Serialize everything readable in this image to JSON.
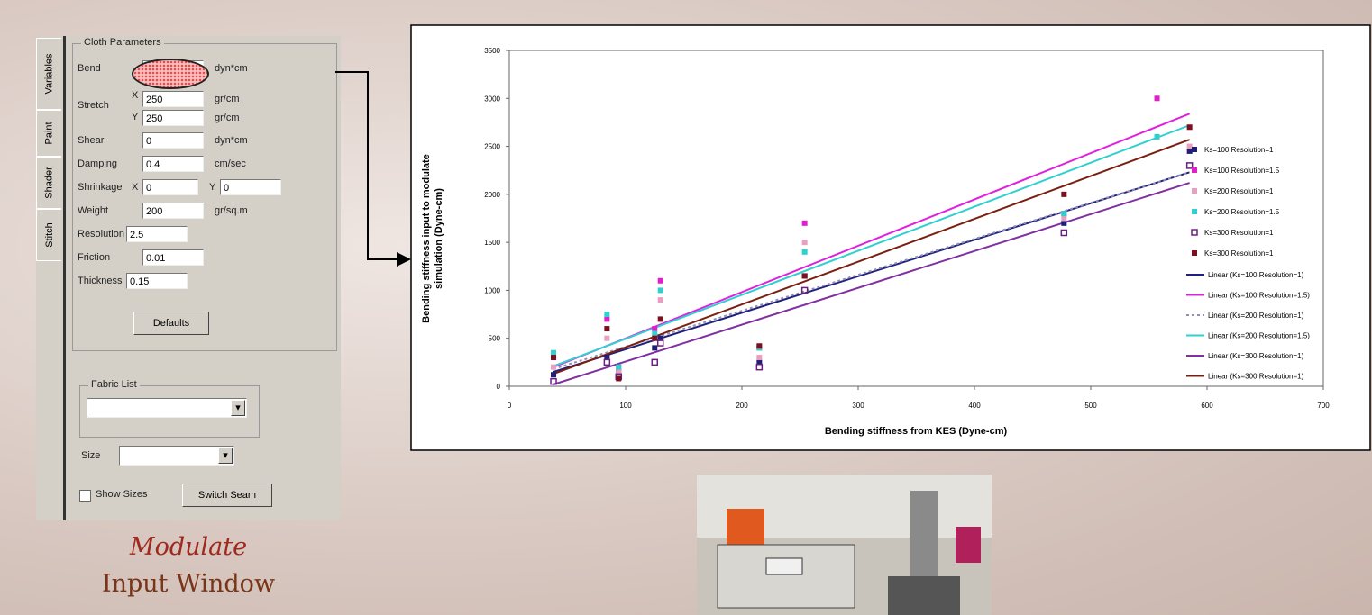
{
  "panel": {
    "tabs": [
      "Variables",
      "Paint",
      "Shader",
      "Stitch"
    ],
    "group": "Cloth Parameters",
    "bend": {
      "label": "Bend",
      "unit": "dyn*cm"
    },
    "stretch": {
      "label": "Stretch",
      "x_label": "X",
      "x": 250,
      "y_label": "Y",
      "y": 250,
      "unit": "gr/cm"
    },
    "shear": {
      "label": "Shear",
      "value": 0,
      "unit": "dyn*cm"
    },
    "damping": {
      "label": "Damping",
      "value": 0.4,
      "unit": "cm/sec"
    },
    "shrinkage": {
      "label": "Shrinkage",
      "x_label": "X",
      "x": 0,
      "y_label": "Y",
      "y": 0
    },
    "weight": {
      "label": "Weight",
      "value": 200,
      "unit": "gr/sq.m"
    },
    "resolution": {
      "label": "Resolution",
      "value": 2.5
    },
    "friction": {
      "label": "Friction",
      "value": 0.01
    },
    "thickness": {
      "label": "Thickness",
      "value": 0.15
    },
    "defaults_button": "Defaults",
    "fabric_group": "Fabric List",
    "size_label": "Size",
    "show_sizes": "Show Sizes",
    "switch_button": "Switch Seam"
  },
  "caption": [
    "Modulate",
    "Input Window"
  ],
  "chart_data": {
    "type": "scatter",
    "xlabel": "Bending stiffness from KES (Dyne-cm)",
    "ylabel": [
      "Bending stiffness input to modulate",
      "simulation (Dyne-cm)"
    ],
    "xlim": [
      0,
      700
    ],
    "xticks": [
      0,
      100,
      200,
      300,
      400,
      500,
      600,
      700
    ],
    "ylim": [
      0,
      3500
    ],
    "yticks": [
      0,
      500,
      1000,
      1500,
      2000,
      2500,
      3000,
      3500
    ],
    "series": [
      {
        "name": "Ks=100,Resolution=1",
        "color": "#1f1f7a",
        "hollow": false,
        "x": [
          38,
          84,
          94,
          125,
          130,
          215,
          254,
          477,
          585
        ],
        "values": [
          120,
          300,
          150,
          400,
          500,
          250,
          1150,
          1700,
          2450
        ]
      },
      {
        "name": "Ks=100,Resolution=1.5",
        "color": "#e020c8",
        "hollow": false,
        "x": [
          38,
          84,
          94,
          125,
          130,
          215,
          254,
          477,
          557
        ],
        "values": [
          300,
          700,
          200,
          600,
          1100,
          400,
          1700,
          1800,
          3000
        ]
      },
      {
        "name": "Ks=200,Resolution=1",
        "color": "#e8a0c0",
        "hollow": false,
        "x": [
          38,
          84,
          94,
          125,
          130,
          215,
          254,
          477,
          585
        ],
        "values": [
          200,
          500,
          150,
          500,
          900,
          300,
          1500,
          1750,
          2500
        ]
      },
      {
        "name": "Ks=200,Resolution=1.5",
        "color": "#30d0d0",
        "hollow": false,
        "x": [
          38,
          84,
          94,
          125,
          130,
          215,
          254,
          477,
          557
        ],
        "values": [
          350,
          750,
          200,
          550,
          1000,
          400,
          1400,
          1800,
          2600
        ]
      },
      {
        "name": "Ks=300,Resolution=1",
        "color": "#6a2080",
        "hollow": true,
        "x": [
          38,
          84,
          94,
          125,
          130,
          215,
          254,
          477,
          585
        ],
        "values": [
          50,
          250,
          100,
          250,
          450,
          200,
          1000,
          1600,
          2300
        ]
      },
      {
        "name": "Ks=300,Resolution=1",
        "color": "#7a1020",
        "hollow": false,
        "x": [
          38,
          84,
          94,
          125,
          130,
          215,
          254,
          477,
          585
        ],
        "values": [
          300,
          600,
          80,
          500,
          700,
          420,
          1150,
          2000,
          2700
        ]
      }
    ],
    "trendlines": [
      {
        "name": "Linear (Ks=100,Resolution=1)",
        "color": "#202080",
        "dashed": false,
        "x": [
          38,
          585
        ],
        "values": [
          150,
          2230
        ]
      },
      {
        "name": "Linear (Ks=100,Resolution=1.5)",
        "color": "#e020e0",
        "dashed": false,
        "x": [
          38,
          585
        ],
        "values": [
          200,
          2840
        ]
      },
      {
        "name": "Linear (Ks=200,Resolution=1)",
        "color": "#9090b0",
        "dashed": true,
        "x": [
          38,
          585
        ],
        "values": [
          180,
          2230
        ]
      },
      {
        "name": "Linear (Ks=200,Resolution=1.5)",
        "color": "#30d0d0",
        "dashed": false,
        "x": [
          38,
          585
        ],
        "values": [
          210,
          2720
        ]
      },
      {
        "name": "Linear (Ks=300,Resolution=1)",
        "color": "#8030a0",
        "dashed": false,
        "x": [
          38,
          585
        ],
        "values": [
          20,
          2120
        ]
      },
      {
        "name": "Linear (Ks=300,Resolution=1)",
        "color": "#7a2010",
        "dashed": false,
        "x": [
          38,
          585
        ],
        "values": [
          130,
          2570
        ]
      }
    ]
  }
}
